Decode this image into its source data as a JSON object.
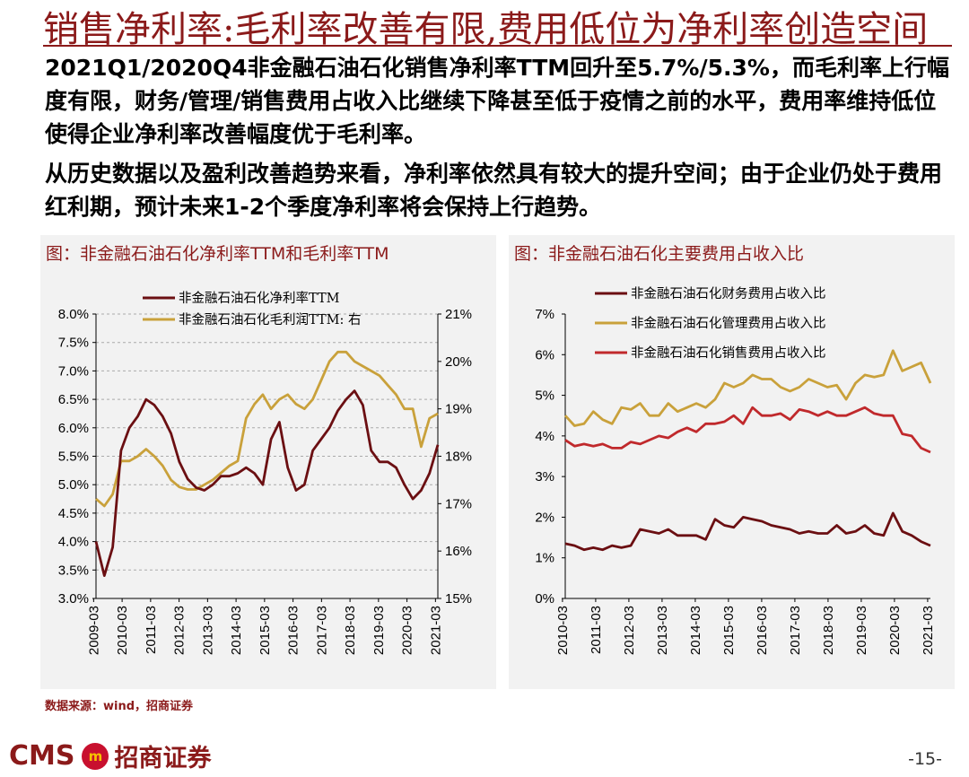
{
  "title": "销售净利率:毛利率改善有限,费用低位为净利率创造空间",
  "paragraphs": [
    "2021Q1/2020Q4非金融石油石化销售净利率TTM回升至5.7%/5.3%，而毛利率上行幅度有限，财务/管理/销售费用占收入比继续下降甚至低于疫情之前的水平，费用率维持低位使得企业净利率改善幅度优于毛利率。",
    "从历史数据以及盈利改善趋势来看，净利率依然具有较大的提升空间；由于企业仍处于费用红利期，预计未来1-2个季度净利率将会保持上行趋势。"
  ],
  "source": "数据来源：wind，招商证券",
  "logo": {
    "en": "CMS",
    "badge": "m",
    "cn": "招商证券"
  },
  "page_number": "-15-",
  "colors": {
    "dark_red": "#6B0F12",
    "gold": "#C9A13B",
    "red": "#C0292C",
    "title": "#8B1A1A"
  },
  "chart_data": [
    {
      "type": "line",
      "title": "图：非金融石油石化净利率TTM和毛利率TTM",
      "left_axis": {
        "ticks": [
          "8.0%",
          "7.5%",
          "7.0%",
          "6.5%",
          "6.0%",
          "5.5%",
          "5.0%",
          "4.5%",
          "4.0%",
          "3.5%",
          "3.0%"
        ],
        "ylim": [
          3.0,
          8.0
        ]
      },
      "right_axis": {
        "ticks": [
          "21%",
          "20%",
          "19%",
          "18%",
          "17%",
          "16%",
          "15%"
        ],
        "ylim": [
          15,
          21
        ]
      },
      "x_ticks": [
        "2009-03",
        "2010-03",
        "2011-03",
        "2012-03",
        "2013-03",
        "2014-03",
        "2015-03",
        "2016-03",
        "2017-03",
        "2018-03",
        "2019-03",
        "2020-03",
        "2021-03"
      ],
      "x_start": 2009.25,
      "x_end": 2021.25,
      "series": [
        {
          "name": "非金融石油石化净利率TTM",
          "axis": "left",
          "color": "#6B0F12",
          "values": [
            4.0,
            3.4,
            3.9,
            5.6,
            6.0,
            6.2,
            6.5,
            6.4,
            6.2,
            5.9,
            5.4,
            5.1,
            4.95,
            4.9,
            5.0,
            5.15,
            5.15,
            5.2,
            5.3,
            5.2,
            5.0,
            5.8,
            6.1,
            5.3,
            4.9,
            5.0,
            5.6,
            5.8,
            6.0,
            6.3,
            6.5,
            6.65,
            6.4,
            5.6,
            5.4,
            5.4,
            5.3,
            5.0,
            4.75,
            4.9,
            5.2,
            5.7
          ]
        },
        {
          "name": "非金融石油石化毛利润TTM: 右",
          "axis": "right",
          "color": "#C9A13B",
          "values": [
            17.1,
            16.95,
            17.2,
            17.9,
            17.9,
            18.0,
            18.15,
            18.0,
            17.8,
            17.5,
            17.35,
            17.3,
            17.3,
            17.4,
            17.5,
            17.65,
            17.8,
            17.9,
            18.8,
            19.1,
            19.3,
            19.0,
            19.2,
            19.3,
            19.1,
            19.0,
            19.2,
            19.6,
            20.0,
            20.2,
            20.2,
            20.0,
            19.9,
            19.8,
            19.7,
            19.5,
            19.3,
            19.0,
            19.0,
            18.2,
            18.8,
            18.9
          ]
        }
      ]
    },
    {
      "type": "line",
      "title": "图：非金融石油石化主要费用占收入比",
      "axis": {
        "ticks": [
          "7%",
          "6%",
          "5%",
          "4%",
          "3%",
          "2%",
          "1%",
          "0%"
        ],
        "ylim": [
          0,
          7
        ]
      },
      "x_ticks": [
        "2010-03",
        "2011-03",
        "2012-03",
        "2013-03",
        "2014-03",
        "2015-03",
        "2016-03",
        "2017-03",
        "2018-03",
        "2019-03",
        "2020-03",
        "2021-03"
      ],
      "x_start": 2010.25,
      "x_end": 2021.25,
      "series": [
        {
          "name": "非金融石油石化财务费用占收入比",
          "color": "#6B0F12",
          "values": [
            1.35,
            1.3,
            1.2,
            1.25,
            1.2,
            1.3,
            1.25,
            1.3,
            1.7,
            1.65,
            1.6,
            1.7,
            1.55,
            1.55,
            1.55,
            1.45,
            1.95,
            1.8,
            1.75,
            2.0,
            1.95,
            1.9,
            1.8,
            1.75,
            1.7,
            1.6,
            1.65,
            1.6,
            1.6,
            1.8,
            1.6,
            1.65,
            1.8,
            1.6,
            1.55,
            2.1,
            1.65,
            1.55,
            1.4,
            1.3
          ]
        },
        {
          "name": "非金融石油石化管理费用占收入比",
          "color": "#C9A13B",
          "values": [
            4.5,
            4.25,
            4.3,
            4.6,
            4.4,
            4.3,
            4.7,
            4.65,
            4.8,
            4.5,
            4.5,
            4.8,
            4.6,
            4.7,
            4.8,
            4.7,
            4.9,
            5.3,
            5.2,
            5.3,
            5.5,
            5.4,
            5.4,
            5.2,
            5.1,
            5.2,
            5.4,
            5.3,
            5.2,
            5.25,
            4.9,
            5.3,
            5.5,
            5.45,
            5.5,
            6.1,
            5.6,
            5.7,
            5.8,
            5.3
          ]
        },
        {
          "name": "非金融石油石化销售费用占收入比",
          "color": "#C0292C",
          "values": [
            3.9,
            3.75,
            3.8,
            3.75,
            3.8,
            3.7,
            3.7,
            3.85,
            3.8,
            3.9,
            4.0,
            3.95,
            4.1,
            4.2,
            4.1,
            4.3,
            4.3,
            4.35,
            4.5,
            4.3,
            4.7,
            4.5,
            4.5,
            4.55,
            4.4,
            4.65,
            4.6,
            4.5,
            4.6,
            4.5,
            4.5,
            4.6,
            4.7,
            4.55,
            4.5,
            4.5,
            4.05,
            4.0,
            3.7,
            3.6
          ]
        }
      ]
    }
  ]
}
